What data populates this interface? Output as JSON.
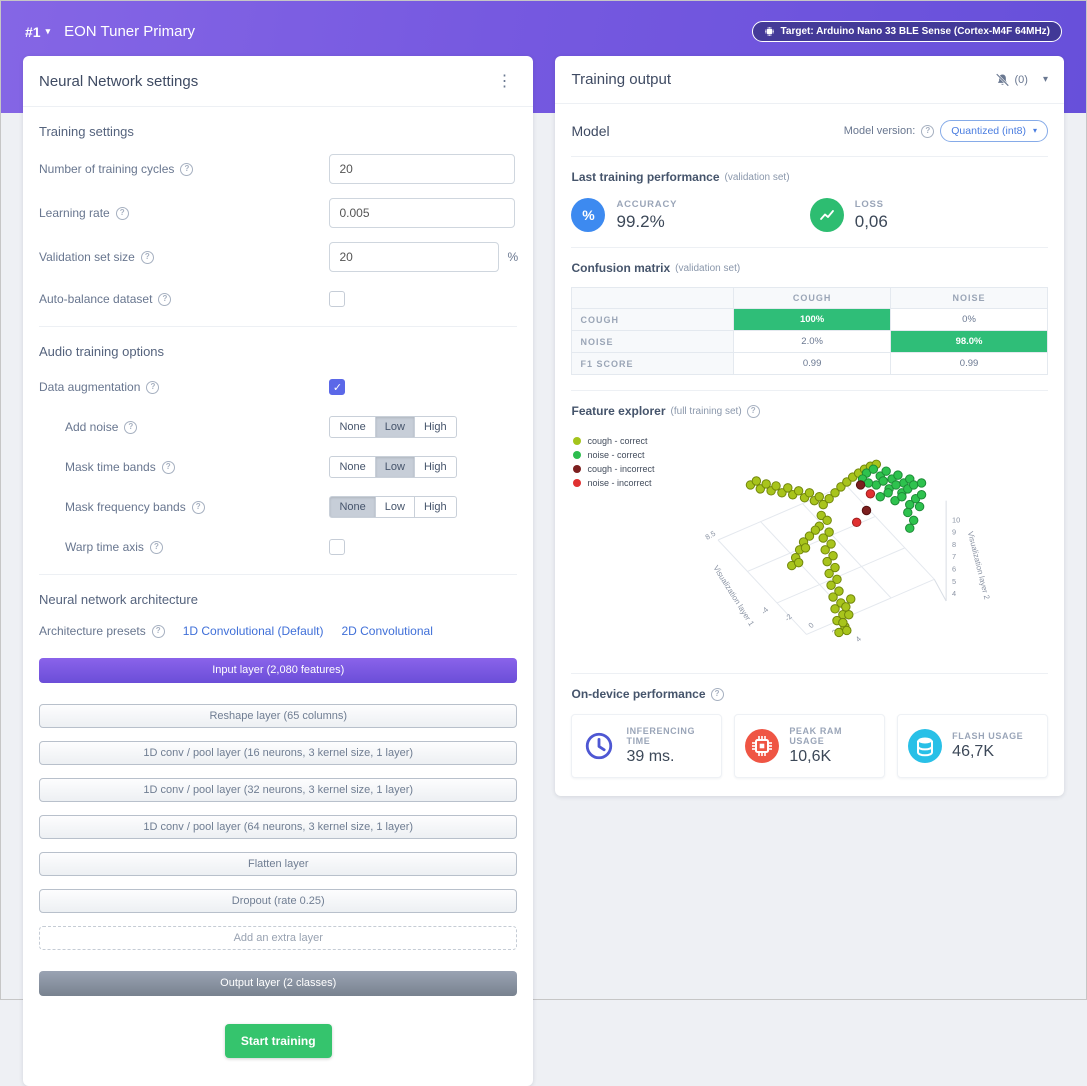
{
  "icons": {
    "chevron_down": "▾",
    "kebab": "⋮",
    "help": "?",
    "check": "✓",
    "percent": "%"
  },
  "header": {
    "project_selector": "#1",
    "title": "EON Tuner Primary",
    "target_badge": "Target: Arduino Nano 33 BLE Sense (Cortex-M4F 64MHz)"
  },
  "nn": {
    "title": "Neural Network settings",
    "training": {
      "heading": "Training settings",
      "fields": [
        {
          "label": "Number of training cycles",
          "value": "20"
        },
        {
          "label": "Learning rate",
          "value": "0.005"
        },
        {
          "label": "Validation set size",
          "value": "20",
          "suffix": "%"
        },
        {
          "label": "Auto-balance dataset",
          "checked": false
        }
      ]
    },
    "audio": {
      "heading": "Audio training options",
      "augmentation_label": "Data augmentation",
      "augmentation_checked": true,
      "segments": [
        "None",
        "Low",
        "High"
      ],
      "options": [
        {
          "label": "Add noise",
          "selected": "Low"
        },
        {
          "label": "Mask time bands",
          "selected": "Low"
        },
        {
          "label": "Mask frequency bands",
          "selected": "None"
        },
        {
          "label": "Warp time axis",
          "checked": false
        }
      ]
    },
    "architecture": {
      "heading": "Neural network architecture",
      "presets_label": "Architecture presets",
      "presets": [
        "1D Convolutional (Default)",
        "2D Convolutional"
      ],
      "layers": [
        {
          "label": "Input layer (2,080 features)",
          "type": "input"
        },
        {
          "label": "Reshape layer (65 columns)",
          "type": "default"
        },
        {
          "label": "1D conv / pool layer (16 neurons, 3 kernel size, 1 layer)",
          "type": "default"
        },
        {
          "label": "1D conv / pool layer (32 neurons, 3 kernel size, 1 layer)",
          "type": "default"
        },
        {
          "label": "1D conv / pool layer (64 neurons, 3 kernel size, 1 layer)",
          "type": "default"
        },
        {
          "label": "Flatten layer",
          "type": "default"
        },
        {
          "label": "Dropout (rate 0.25)",
          "type": "default"
        },
        {
          "label": "Add an extra layer",
          "type": "add"
        },
        {
          "label": "Output layer (2 classes)",
          "type": "output"
        }
      ]
    },
    "start_button": "Start training"
  },
  "output": {
    "title": "Training output",
    "notifications": "(0)",
    "model_heading": "Model",
    "version_label": "Model version:",
    "version_value": "Quantized (int8)",
    "performance": {
      "heading": "Last training performance",
      "suffix": "(validation set)",
      "accuracy_label": "ACCURACY",
      "accuracy_value": "99.2%",
      "accuracy_color": "#3d8af0",
      "loss_label": "LOSS",
      "loss_value": "0,06",
      "loss_color": "#2dbd71"
    },
    "confusion": {
      "heading": "Confusion matrix",
      "suffix": "(validation set)",
      "columns": [
        "COUGH",
        "NOISE"
      ],
      "rows": [
        {
          "label": "COUGH",
          "values": [
            "100%",
            "0%"
          ],
          "highlight": [
            true,
            false
          ]
        },
        {
          "label": "NOISE",
          "values": [
            "2.0%",
            "98.0%"
          ],
          "highlight": [
            false,
            true
          ]
        },
        {
          "label": "F1 SCORE",
          "values": [
            "0.99",
            "0.99"
          ],
          "highlight": [
            false,
            false
          ]
        }
      ],
      "highlight_color": "#2fbe78"
    },
    "explorer": {
      "heading": "Feature explorer",
      "suffix": "(full training set)",
      "legend": [
        {
          "label": "cough - correct",
          "color": "#a4c41c"
        },
        {
          "label": "noise - correct",
          "color": "#2dbd4e"
        },
        {
          "label": "cough - incorrect",
          "color": "#7c1f1f"
        },
        {
          "label": "noise - incorrect",
          "color": "#e03131"
        }
      ],
      "axis1_label": "Visualization layer 1",
      "axis2_label": "Visualization layer 2",
      "left_tick": "8.5",
      "bottom_ticks": [
        "-4",
        "-2",
        "0",
        "2",
        "4"
      ],
      "right_ticks": [
        "10",
        "9",
        "8",
        "7",
        "6",
        "5",
        "4"
      ],
      "point_groups": [
        {
          "name": "cough-correct",
          "fill": "#a8c41c",
          "stroke": "#71860a",
          "points": [
            [
              78,
              64
            ],
            [
              84,
              60
            ],
            [
              88,
              68
            ],
            [
              94,
              63
            ],
            [
              99,
              70
            ],
            [
              104,
              65
            ],
            [
              110,
              72
            ],
            [
              116,
              67
            ],
            [
              121,
              74
            ],
            [
              127,
              70
            ],
            [
              133,
              77
            ],
            [
              138,
              72
            ],
            [
              143,
              80
            ],
            [
              148,
              76
            ],
            [
              152,
              84
            ],
            [
              158,
              78
            ],
            [
              164,
              72
            ],
            [
              170,
              66
            ],
            [
              176,
              61
            ],
            [
              182,
              56
            ],
            [
              188,
              52
            ],
            [
              194,
              48
            ],
            [
              200,
              45
            ],
            [
              206,
              43
            ],
            [
              150,
              95
            ],
            [
              156,
              100
            ],
            [
              148,
              106
            ],
            [
              158,
              112
            ],
            [
              152,
              118
            ],
            [
              160,
              124
            ],
            [
              154,
              130
            ],
            [
              162,
              136
            ],
            [
              156,
              142
            ],
            [
              164,
              148
            ],
            [
              158,
              154
            ],
            [
              166,
              160
            ],
            [
              160,
              166
            ],
            [
              168,
              172
            ],
            [
              162,
              178
            ],
            [
              170,
              184
            ],
            [
              164,
              190
            ],
            [
              172,
              196
            ],
            [
              166,
              202
            ],
            [
              174,
              208
            ],
            [
              168,
              214
            ],
            [
              176,
              212
            ],
            [
              172,
              204
            ],
            [
              178,
              196
            ],
            [
              175,
              188
            ],
            [
              180,
              180
            ],
            [
              144,
              110
            ],
            [
              138,
              116
            ],
            [
              132,
              122
            ],
            [
              128,
              130
            ],
            [
              124,
              138
            ],
            [
              120,
              146
            ],
            [
              127,
              143
            ],
            [
              134,
              128
            ]
          ]
        },
        {
          "name": "noise-correct",
          "fill": "#2ec24e",
          "stroke": "#1d8a36",
          "points": [
            [
              196,
              52
            ],
            [
              203,
              48
            ],
            [
              210,
              55
            ],
            [
              216,
              50
            ],
            [
              222,
              58
            ],
            [
              228,
              54
            ],
            [
              234,
              62
            ],
            [
              240,
              58
            ],
            [
              206,
              64
            ],
            [
              213,
              60
            ],
            [
              219,
              68
            ],
            [
              226,
              64
            ],
            [
              232,
              72
            ],
            [
              238,
              68
            ],
            [
              244,
              64
            ],
            [
              210,
              76
            ],
            [
              218,
              72
            ],
            [
              225,
              80
            ],
            [
              232,
              76
            ],
            [
              240,
              84
            ],
            [
              246,
              78
            ],
            [
              238,
              92
            ],
            [
              244,
              100
            ],
            [
              240,
              108
            ],
            [
              192,
              58
            ],
            [
              198,
              62
            ],
            [
              252,
              62
            ],
            [
              252,
              74
            ],
            [
              250,
              86
            ]
          ]
        },
        {
          "name": "cough-incorrect",
          "fill": "#7c1f1f",
          "stroke": "#541111",
          "points": [
            [
              190,
              64
            ],
            [
              196,
              90
            ]
          ]
        },
        {
          "name": "noise-incorrect",
          "fill": "#e03131",
          "stroke": "#9e1f1f",
          "points": [
            [
              200,
              73
            ],
            [
              186,
              102
            ]
          ]
        }
      ]
    },
    "on_device": {
      "heading": "On-device performance",
      "metrics": [
        {
          "label": "INFERENCING TIME",
          "value": "39 ms.",
          "icon": "clock",
          "color": "#4e57d3"
        },
        {
          "label": "PEAK RAM USAGE",
          "value": "10,6K",
          "icon": "chip",
          "color": "#ef5544"
        },
        {
          "label": "FLASH USAGE",
          "value": "46,7K",
          "icon": "flash",
          "color": "#29c0e7"
        }
      ]
    }
  }
}
